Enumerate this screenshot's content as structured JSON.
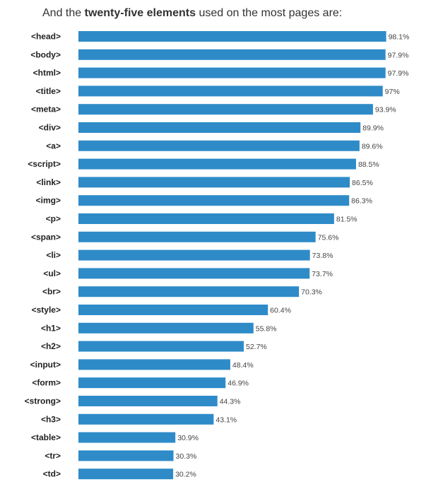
{
  "heading": {
    "prefix": "And the ",
    "bold": "twenty-five elements",
    "suffix": " used on the most pages are:"
  },
  "colors": {
    "bar": "#2e8bc8"
  },
  "chart_data": {
    "type": "bar",
    "orientation": "horizontal",
    "categories": [
      "<head>",
      "<body>",
      "<html>",
      "<title>",
      "<meta>",
      "<div>",
      "<a>",
      "<script>",
      "<link>",
      "<img>",
      "<p>",
      "<span>",
      "<li>",
      "<ul>",
      "<br>",
      "<style>",
      "<h1>",
      "<h2>",
      "<input>",
      "<form>",
      "<strong>",
      "<h3>",
      "<table>",
      "<tr>",
      "<td>"
    ],
    "values": [
      98.1,
      97.9,
      97.9,
      97,
      93.9,
      89.9,
      89.6,
      88.5,
      86.5,
      86.3,
      81.5,
      75.6,
      73.8,
      73.7,
      70.3,
      60.4,
      55.8,
      52.7,
      48.4,
      46.9,
      44.3,
      43.1,
      30.9,
      30.3,
      30.2
    ],
    "value_labels": [
      "98.1%",
      "97.9%",
      "97.9%",
      "97%",
      "93.9%",
      "89.9%",
      "89.6%",
      "88.5%",
      "86.5%",
      "86.3%",
      "81.5%",
      "75.6%",
      "73.8%",
      "73.7%",
      "70.3%",
      "60.4%",
      "55.8%",
      "52.7%",
      "48.4%",
      "46.9%",
      "44.3%",
      "43.1%",
      "30.9%",
      "30.3%",
      "30.2%"
    ],
    "xlim": [
      0,
      100
    ],
    "grid": false,
    "legend": "none"
  }
}
